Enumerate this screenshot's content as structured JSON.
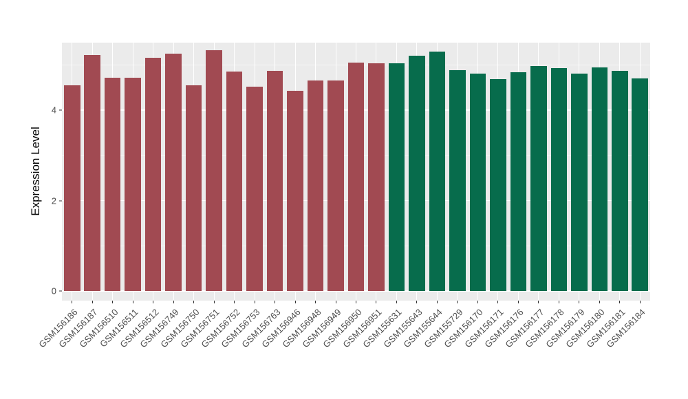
{
  "chart_data": {
    "type": "bar",
    "title": "",
    "xlabel": "",
    "ylabel": "Expression Level",
    "ylim": [
      0,
      5.6
    ],
    "yticks_major": [
      0,
      2,
      4
    ],
    "yticks_minor": [
      1,
      3,
      5
    ],
    "grid": "on",
    "legend_position": "none",
    "panel_bg": "#EBEBEB",
    "gridline_color": "#FFFFFF",
    "axis_text_color": "#4D4D4D",
    "categories": [
      "GSM156186",
      "GSM156187",
      "GSM156510",
      "GSM156511",
      "GSM156512",
      "GSM156749",
      "GSM156750",
      "GSM156751",
      "GSM156752",
      "GSM156753",
      "GSM156763",
      "GSM156946",
      "GSM156948",
      "GSM156949",
      "GSM156950",
      "GSM156951",
      "GSM155631",
      "GSM155643",
      "GSM155644",
      "GSM155729",
      "GSM156170",
      "GSM156171",
      "GSM156176",
      "GSM156177",
      "GSM156178",
      "GSM156179",
      "GSM156180",
      "GSM156181",
      "GSM156184"
    ],
    "values": [
      4.55,
      5.22,
      4.72,
      4.72,
      5.15,
      5.25,
      4.55,
      5.32,
      4.85,
      4.52,
      4.87,
      4.42,
      4.65,
      4.65,
      5.05,
      5.04,
      5.03,
      5.2,
      5.3,
      4.88,
      4.8,
      4.68,
      4.83,
      4.97,
      4.93,
      4.8,
      4.95,
      4.87,
      4.7
    ],
    "groups": [
      "group1",
      "group1",
      "group1",
      "group1",
      "group1",
      "group1",
      "group1",
      "group1",
      "group1",
      "group1",
      "group1",
      "group1",
      "group1",
      "group1",
      "group1",
      "group1",
      "group2",
      "group2",
      "group2",
      "group2",
      "group2",
      "group2",
      "group2",
      "group2",
      "group2",
      "group2",
      "group2",
      "group2",
      "group2"
    ],
    "group_colors": {
      "group1": "#A14A52",
      "group2": "#076C4C"
    }
  }
}
